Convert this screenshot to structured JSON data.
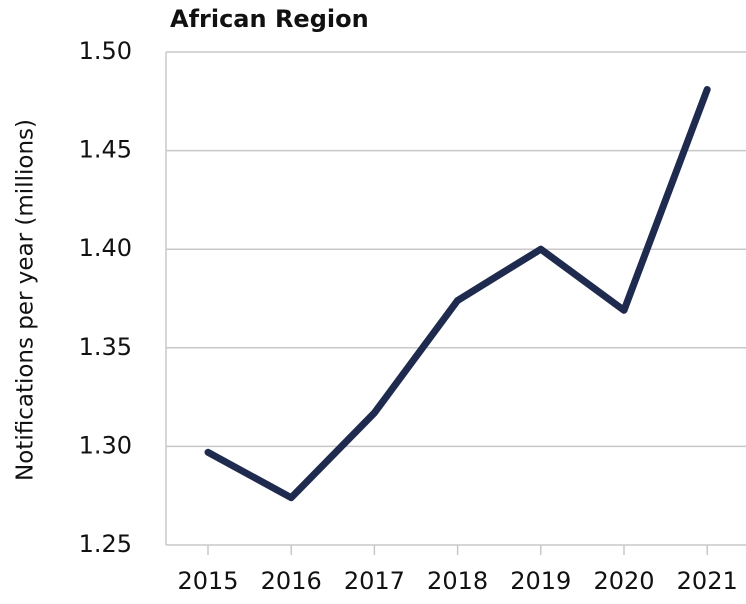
{
  "chart_data": {
    "type": "line",
    "title": "African Region",
    "y_label": "Notifications per year (millions)",
    "categories": [
      "2015",
      "2016",
      "2017",
      "2018",
      "2019",
      "2020",
      "2021"
    ],
    "values": [
      1.297,
      1.274,
      1.317,
      1.374,
      1.4,
      1.369,
      1.481
    ],
    "color": "#1f2a4f",
    "ylim": [
      1.25,
      1.5
    ],
    "yticks": [
      1.25,
      {
        "value": 1.3,
        "label": "1.30"
      },
      1.35,
      {
        "value": 1.4,
        "label": "1.40"
      },
      1.45,
      {
        "value": 1.5,
        "label": "1.50"
      }
    ],
    "grid": true
  }
}
